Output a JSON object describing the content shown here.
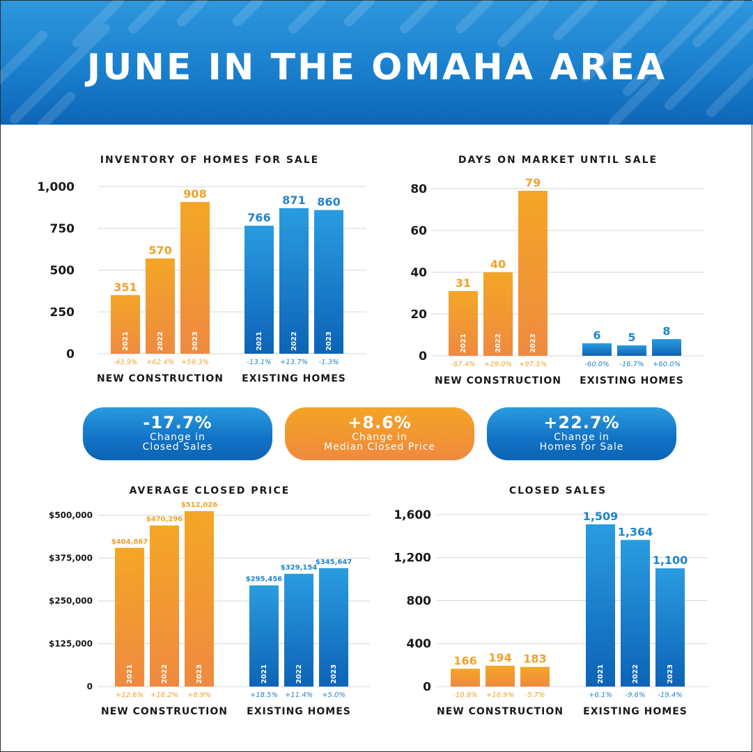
{
  "header": {
    "title": "JUNE IN THE OMAHA AREA"
  },
  "colors": {
    "orange_top": "#f4a626",
    "orange_bottom": "#ef8a40",
    "blue_top": "#2a9ce0",
    "blue_bottom": "#0d63b6",
    "orange_text": "#f0a22a",
    "blue_text": "#1f84cf"
  },
  "stats": [
    {
      "value": "-17.7%",
      "line1": "Change in",
      "line2": "Closed Sales"
    },
    {
      "value": "+8.6%",
      "line1": "Change in",
      "line2": "Median Closed Price"
    },
    {
      "value": "+22.7%",
      "line1": "Change in",
      "line2": "Homes for Sale"
    }
  ],
  "chart_data": [
    {
      "type": "bar",
      "title": "INVENTORY OF HOMES FOR SALE",
      "ylim": [
        0,
        1000
      ],
      "yticks": [
        "0",
        "250",
        "500",
        "750",
        "1,000"
      ],
      "groups": [
        {
          "label": "NEW CONSTRUCTION",
          "color": "orange",
          "years": [
            "2021",
            "2022",
            "2023"
          ],
          "values": [
            351,
            570,
            908
          ],
          "value_labels": [
            "351",
            "570",
            "908"
          ],
          "changes": [
            "-43.9%",
            "+62.4%",
            "+59.3%"
          ]
        },
        {
          "label": "EXISTING HOMES",
          "color": "blue",
          "years": [
            "2021",
            "2022",
            "2023"
          ],
          "values": [
            766,
            871,
            860
          ],
          "value_labels": [
            "766",
            "871",
            "860"
          ],
          "changes": [
            "-13.1%",
            "+13.7%",
            "-1.3%"
          ]
        }
      ]
    },
    {
      "type": "bar",
      "title": "DAYS ON MARKET UNTIL SALE",
      "ylim": [
        0,
        80
      ],
      "yticks": [
        "0",
        "20",
        "40",
        "60",
        "80"
      ],
      "groups": [
        {
          "label": "NEW CONSTRUCTION",
          "color": "orange",
          "years": [
            "2021",
            "2022",
            "2023"
          ],
          "values": [
            31,
            40,
            79
          ],
          "value_labels": [
            "31",
            "40",
            "79"
          ],
          "changes": [
            "-67.4%",
            "+29.0%",
            "+97.5%"
          ]
        },
        {
          "label": "EXISTING HOMES",
          "color": "blue",
          "years": [
            "",
            "",
            ""
          ],
          "values": [
            6,
            5,
            8
          ],
          "value_labels": [
            "6",
            "5",
            "8"
          ],
          "changes": [
            "-60.0%",
            "-16.7%",
            "+60.0%"
          ]
        }
      ]
    },
    {
      "type": "bar",
      "title": "AVERAGE CLOSED PRICE",
      "ylim": [
        0,
        500000
      ],
      "yticks": [
        "0",
        "$125,000",
        "$250,000",
        "$375,000",
        "$500,000"
      ],
      "groups": [
        {
          "label": "NEW CONSTRUCTION",
          "color": "orange",
          "years": [
            "2021",
            "2022",
            "2023"
          ],
          "values": [
            404867,
            470296,
            512026
          ],
          "value_labels": [
            "$404,867",
            "$470,296",
            "$512,026"
          ],
          "changes": [
            "+12.6%",
            "+16.2%",
            "+8.9%"
          ]
        },
        {
          "label": "EXISTING HOMES",
          "color": "blue",
          "years": [
            "2021",
            "2022",
            "2023"
          ],
          "values": [
            295456,
            329154,
            345647
          ],
          "value_labels": [
            "$295,456",
            "$329,154",
            "$345,647"
          ],
          "changes": [
            "+18.5%",
            "+11.4%",
            "+5.0%"
          ]
        }
      ]
    },
    {
      "type": "bar",
      "title": "CLOSED SALES",
      "ylim": [
        0,
        1600
      ],
      "yticks": [
        "0",
        "400",
        "800",
        "1,200",
        "1,600"
      ],
      "groups": [
        {
          "label": "NEW CONSTRUCTION",
          "color": "orange",
          "years": [
            "",
            "",
            ""
          ],
          "values": [
            166,
            194,
            183
          ],
          "value_labels": [
            "166",
            "194",
            "183"
          ],
          "changes": [
            "-10.8%",
            "+16.9%",
            "-5.7%"
          ]
        },
        {
          "label": "EXISTING HOMES",
          "color": "blue",
          "years": [
            "2021",
            "2022",
            "2023"
          ],
          "values": [
            1509,
            1364,
            1100
          ],
          "value_labels": [
            "1,509",
            "1,364",
            "1,100"
          ],
          "changes": [
            "+6.1%",
            "-9.6%",
            "-19.4%"
          ]
        }
      ]
    }
  ]
}
